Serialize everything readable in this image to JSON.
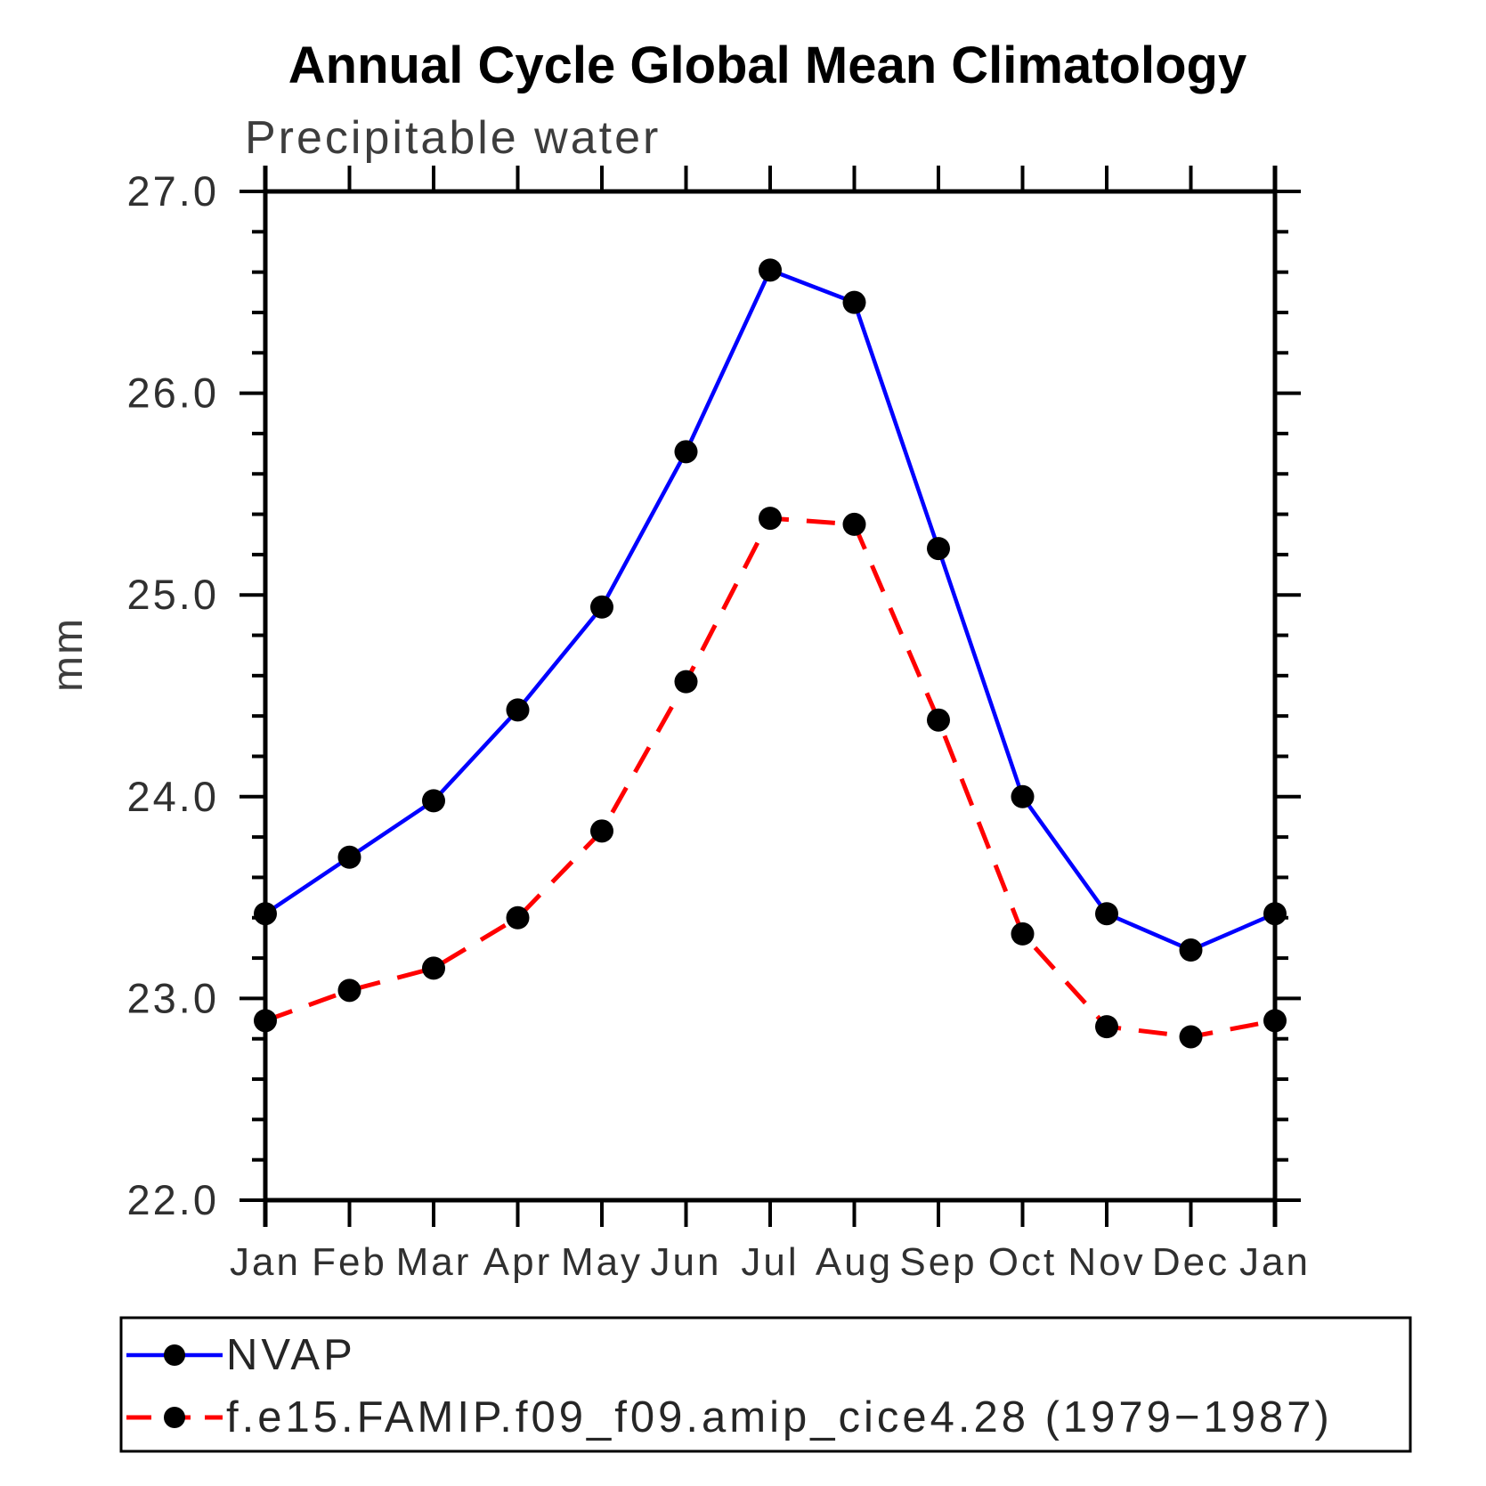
{
  "title": "Annual Cycle Global Mean Climatology",
  "subtitle": "Precipitable water",
  "ylabel": "mm",
  "colors": {
    "axis": "#000000",
    "marker": "#000000",
    "nvap_line": "#0000ff",
    "model_line": "#ff0000",
    "background": "#ffffff"
  },
  "chart_data": {
    "type": "line",
    "title": "Annual Cycle Global Mean Climatology",
    "subtitle": "Precipitable water",
    "xlabel": "",
    "ylabel": "mm",
    "categories": [
      "Jan",
      "Feb",
      "Mar",
      "Apr",
      "May",
      "Jun",
      "Jul",
      "Aug",
      "Sep",
      "Oct",
      "Nov",
      "Dec",
      "Jan"
    ],
    "ylim": [
      22.0,
      27.0
    ],
    "ytick_major_step": 1.0,
    "ytick_minor_step": 0.2,
    "ytick_labels": [
      "22.0",
      "23.0",
      "24.0",
      "25.0",
      "26.0",
      "27.0"
    ],
    "grid": false,
    "legend_position": "bottom-left-box",
    "series": [
      {
        "name": "NVAP",
        "color": "#0000ff",
        "style": "solid",
        "marker": "filled-circle",
        "marker_color": "#000000",
        "values": [
          23.42,
          23.7,
          23.98,
          24.43,
          24.94,
          25.71,
          26.61,
          26.45,
          25.23,
          24.0,
          23.42,
          23.24,
          23.42
        ]
      },
      {
        "name": "f.e15.FAMIP.f09_f09.amip_cice4.28 (1979−1987)",
        "color": "#ff0000",
        "style": "dashed",
        "marker": "filled-circle",
        "marker_color": "#000000",
        "values": [
          22.89,
          23.04,
          23.15,
          23.4,
          23.83,
          24.57,
          25.38,
          25.35,
          24.38,
          23.32,
          22.86,
          22.81,
          22.89
        ]
      }
    ]
  }
}
